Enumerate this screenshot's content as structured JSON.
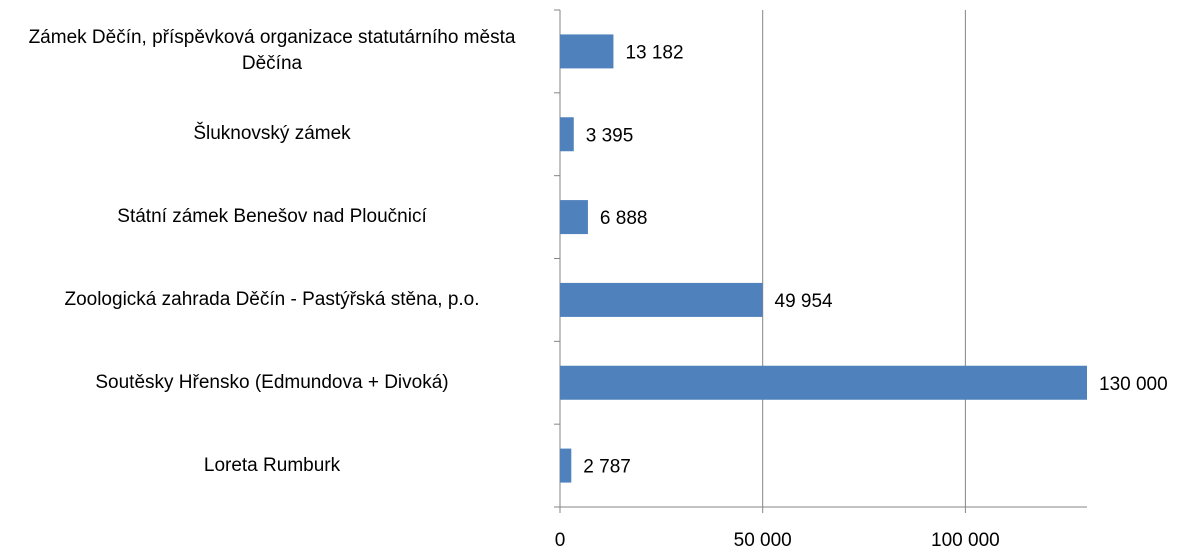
{
  "chart_data": {
    "type": "bar",
    "orientation": "horizontal",
    "categories": [
      "Zámek Děčín, příspěvková organizace statutárního města Děčína",
      "Šluknovský zámek",
      "Státní zámek Benešov nad Ploučnicí",
      "Zoologická zahrada Děčín - Pastýřská stěna, p.o.",
      "Soutěsky Hřensko (Edmundova + Divoká)",
      "Loreta Rumburk"
    ],
    "values": [
      13182,
      3395,
      6888,
      49954,
      130000,
      2787
    ],
    "value_labels": [
      "13 182",
      "3 395",
      "6 888",
      "49 954",
      "130 000",
      "2 787"
    ],
    "color": "#4f81bd",
    "xlim": [
      0,
      130000
    ],
    "xticks": [
      0,
      {
        "value": 50000,
        "label": "50 000"
      },
      {
        "value": 100000,
        "label": "100 000"
      }
    ],
    "grid": true
  }
}
